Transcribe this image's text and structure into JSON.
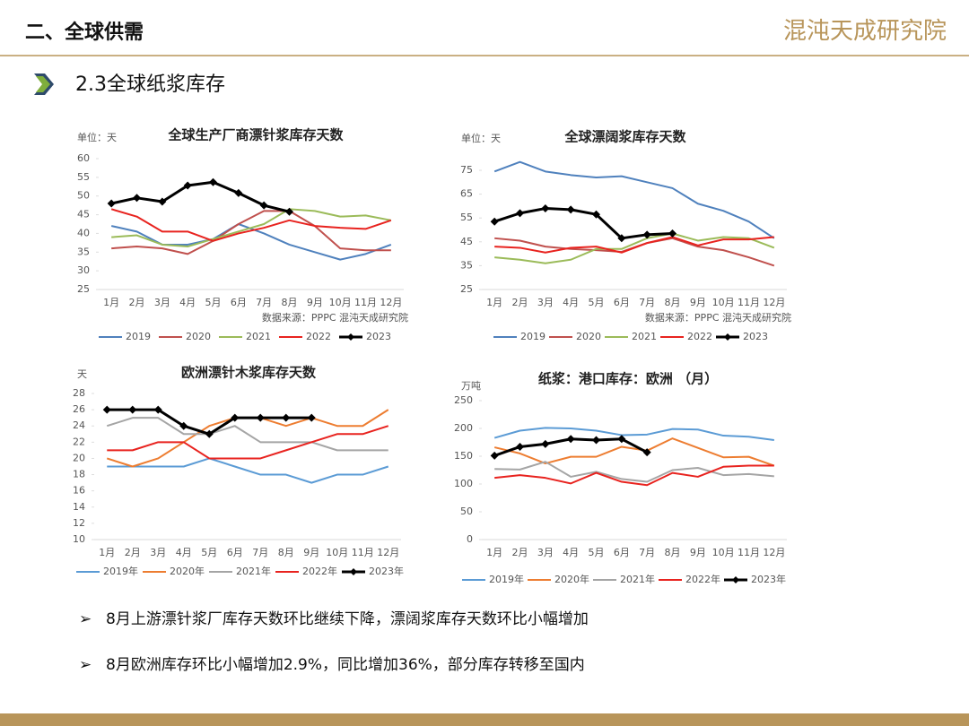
{
  "header": {
    "title": "二、全球供需",
    "logo": "混沌天成研究院"
  },
  "section": "2.3全球纸浆库存",
  "chart_data": [
    {
      "type": "line",
      "title": "全球生产厂商漂针浆库存天数",
      "unit": "单位：天",
      "source": "数据来源：PPPC 混沌天成研究院",
      "categories": [
        "1月",
        "2月",
        "3月",
        "4月",
        "5月",
        "6月",
        "7月",
        "8月",
        "9月",
        "10月",
        "11月",
        "12月"
      ],
      "ylim": [
        25,
        60
      ],
      "yticks": [
        25,
        30,
        35,
        40,
        45,
        50,
        55,
        60
      ],
      "series": [
        {
          "name": "2019",
          "color": "#4f81bd",
          "values": [
            42,
            40.5,
            37,
            37,
            38.5,
            42.5,
            40,
            37,
            35,
            33,
            34.5,
            37
          ]
        },
        {
          "name": "2020",
          "color": "#c0504d",
          "values": [
            36,
            36.5,
            36,
            34.5,
            38,
            42.5,
            46,
            46,
            42,
            36,
            35.5,
            35.5
          ]
        },
        {
          "name": "2021",
          "color": "#9bbb59",
          "values": [
            39,
            39.5,
            37,
            36.5,
            38.5,
            40.5,
            42.5,
            46.5,
            46,
            44.5,
            44.8,
            43.5
          ]
        },
        {
          "name": "2022",
          "color": "#e8231f",
          "values": [
            46.5,
            44.5,
            40.5,
            40.5,
            38,
            40,
            41.5,
            43.5,
            42,
            41.5,
            41.2,
            43.5
          ]
        },
        {
          "name": "2023",
          "color": "#000000",
          "marker": "diamond",
          "values": [
            48,
            49.5,
            48.5,
            52.8,
            53.7,
            50.8,
            47.5,
            45.8,
            null,
            null,
            null,
            null
          ]
        }
      ]
    },
    {
      "type": "line",
      "title": "全球漂阔浆库存天数",
      "unit": "单位：天",
      "source": "数据来源：PPPC 混沌天成研究院",
      "categories": [
        "1月",
        "2月",
        "3月",
        "4月",
        "5月",
        "6月",
        "7月",
        "8月",
        "9月",
        "10月",
        "11月",
        "12月"
      ],
      "ylim": [
        25,
        75
      ],
      "yticks": [
        25,
        35,
        45,
        55,
        65,
        75
      ],
      "series": [
        {
          "name": "2019",
          "color": "#4f81bd",
          "values": [
            74.5,
            78.5,
            74.5,
            73,
            72,
            72.5,
            70,
            67.5,
            61,
            58,
            53.5,
            46.5
          ]
        },
        {
          "name": "2020",
          "color": "#c0504d",
          "values": [
            46.5,
            45.5,
            43,
            42,
            41.5,
            40.8,
            44.5,
            46.5,
            43,
            41.5,
            38.5,
            35
          ]
        },
        {
          "name": "2021",
          "color": "#9bbb59",
          "values": [
            38.5,
            37.5,
            36,
            37.5,
            42,
            42,
            46.5,
            48.5,
            45.5,
            47,
            46.5,
            42.5
          ]
        },
        {
          "name": "2022",
          "color": "#e8231f",
          "values": [
            43,
            42.5,
            40.5,
            42.5,
            43,
            40.5,
            44.5,
            47,
            43.5,
            46,
            46,
            47
          ]
        },
        {
          "name": "2023",
          "color": "#000000",
          "marker": "diamond",
          "values": [
            53.5,
            57,
            59,
            58.5,
            56.5,
            46.5,
            48,
            48.5,
            null,
            null,
            null,
            null
          ]
        }
      ]
    },
    {
      "type": "line",
      "title": "欧洲漂针木浆库存天数",
      "unit": "天",
      "categories": [
        "1月",
        "2月",
        "3月",
        "4月",
        "5月",
        "6月",
        "7月",
        "8月",
        "9月",
        "10月",
        "11月",
        "12月"
      ],
      "ylim": [
        10,
        28
      ],
      "yticks": [
        10,
        12,
        14,
        16,
        18,
        20,
        22,
        24,
        26,
        28
      ],
      "series": [
        {
          "name": "2019年",
          "color": "#5b9bd5",
          "values": [
            19,
            19,
            19,
            19,
            20,
            19,
            18,
            18,
            17,
            18,
            18,
            19
          ]
        },
        {
          "name": "2020年",
          "color": "#ed7d31",
          "values": [
            20,
            19,
            20,
            22,
            24,
            25,
            25,
            24,
            25,
            24,
            24,
            26
          ]
        },
        {
          "name": "2021年",
          "color": "#a5a5a5",
          "values": [
            24,
            25,
            25,
            23,
            23,
            24,
            22,
            22,
            22,
            21,
            21,
            21
          ]
        },
        {
          "name": "2022年",
          "color": "#e8231f",
          "values": [
            21,
            21,
            22,
            22,
            20,
            20,
            20,
            21,
            22,
            23,
            23,
            24
          ]
        },
        {
          "name": "2023年",
          "color": "#000000",
          "marker": "diamond",
          "values": [
            26,
            26,
            26,
            24,
            23,
            25,
            25,
            25,
            25,
            null,
            null,
            null
          ]
        }
      ]
    },
    {
      "type": "line",
      "title": "纸浆：港口库存：欧洲 （月）",
      "unit": "万吨",
      "categories": [
        "1月",
        "2月",
        "3月",
        "4月",
        "5月",
        "6月",
        "7月",
        "8月",
        "9月",
        "10月",
        "11月",
        "12月"
      ],
      "ylim": [
        0,
        250
      ],
      "yticks": [
        0,
        50,
        100,
        150,
        200,
        250
      ],
      "series": [
        {
          "name": "2019年",
          "color": "#5b9bd5",
          "values": [
            183,
            196,
            201,
            200,
            196,
            188,
            189,
            199,
            198,
            187,
            185,
            179
          ]
        },
        {
          "name": "2020年",
          "color": "#ed7d31",
          "values": [
            166,
            155,
            137,
            149,
            149,
            167,
            160,
            182,
            165,
            148,
            149,
            133
          ]
        },
        {
          "name": "2021年",
          "color": "#a5a5a5",
          "values": [
            127,
            126,
            140,
            113,
            122,
            109,
            104,
            125,
            129,
            116,
            118,
            114
          ]
        },
        {
          "name": "2022年",
          "color": "#e8231f",
          "values": [
            111,
            116,
            111,
            101,
            120,
            104,
            98,
            120,
            113,
            131,
            133,
            133
          ]
        },
        {
          "name": "2023年",
          "color": "#000000",
          "marker": "diamond",
          "values": [
            151,
            167,
            172,
            181,
            179,
            181,
            157,
            null,
            null,
            null,
            null,
            null
          ]
        }
      ]
    }
  ],
  "bullets": [
    "8月上游漂针浆厂库存天数环比继续下降，漂阔浆库存天数环比小幅增加",
    "8月欧洲库存环比小幅增加2.9%，同比增加36%，部分库存转移至国内"
  ]
}
